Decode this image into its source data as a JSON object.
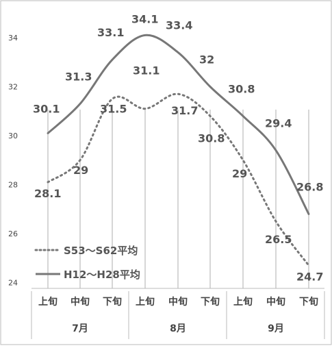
{
  "chart_data": {
    "type": "line",
    "categories": [
      "上旬",
      "中旬",
      "下旬",
      "上旬",
      "中旬",
      "下旬",
      "上旬",
      "中旬",
      "下旬"
    ],
    "groups": [
      {
        "label": "7月",
        "span": 3
      },
      {
        "label": "8月",
        "span": 3
      },
      {
        "label": "9月",
        "span": 3
      }
    ],
    "series": [
      {
        "name": "S53〜S62平均",
        "style": "dotted",
        "color": "#777777",
        "values": [
          28.1,
          29,
          31.5,
          31.1,
          31.7,
          30.8,
          29,
          26.5,
          24.7
        ],
        "labels": [
          "28.1",
          "29",
          "31.5",
          "31.1",
          "31.7",
          "30.8",
          "29",
          "26.5",
          "24.7"
        ]
      },
      {
        "name": "H12〜H28平均",
        "style": "solid",
        "color": "#777777",
        "values": [
          30.1,
          31.3,
          33.1,
          34.1,
          33.4,
          32,
          30.8,
          29.4,
          26.8
        ],
        "labels": [
          "30.1",
          "31.3",
          "33.1",
          "34.1",
          "33.4",
          "32",
          "30.8",
          "29.4",
          "26.8"
        ]
      }
    ],
    "yticks": [
      "24",
      "26",
      "28",
      "30",
      "32",
      "34"
    ],
    "ylim": [
      24,
      35.3
    ],
    "legend_position": "bottom-left",
    "grid": "vertical"
  }
}
